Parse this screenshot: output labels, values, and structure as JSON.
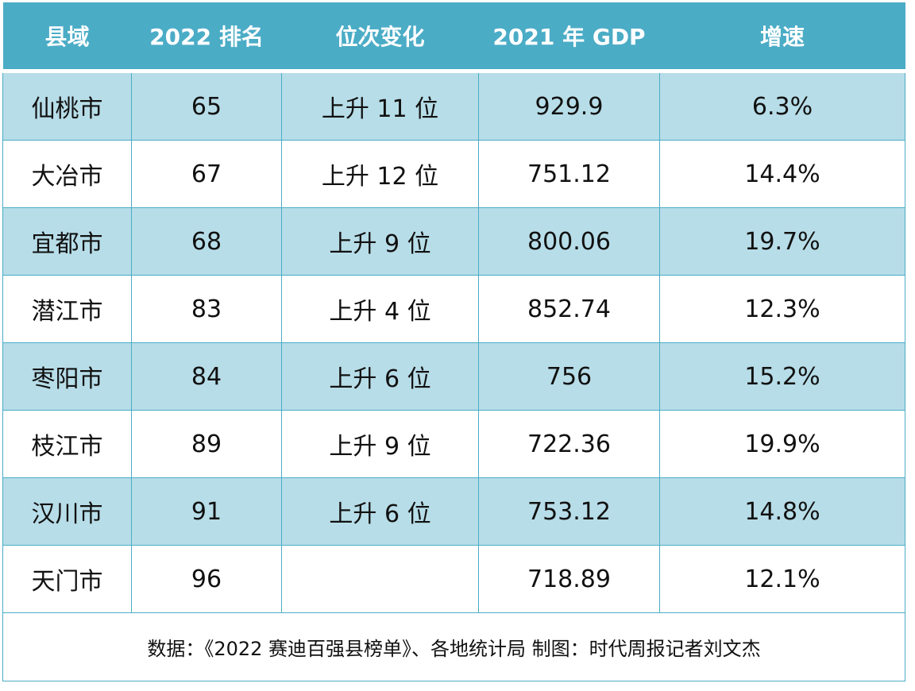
{
  "table": {
    "header": [
      "县域",
      "2022 排名",
      "位次变化",
      "2021 年 GDP",
      "增速"
    ],
    "rows": [
      [
        "仙桃市",
        "65",
        "上升 11 位",
        "929.9",
        "6.3%"
      ],
      [
        "大冶市",
        "67",
        "上升 12 位",
        "751.12",
        "14.4%"
      ],
      [
        "宜都市",
        "68",
        "上升 9 位",
        "800.06",
        "19.7%"
      ],
      [
        "潜江市",
        "83",
        "上升 4 位",
        "852.74",
        "12.3%"
      ],
      [
        "枣阳市",
        "84",
        "上升 6 位",
        "756",
        "15.2%"
      ],
      [
        "枝江市",
        "89",
        "上升 9 位",
        "722.36",
        "19.9%"
      ],
      [
        "汉川市",
        "91",
        "上升 6 位",
        "753.12",
        "14.8%"
      ],
      [
        "天门市",
        "96",
        null,
        "718.89",
        "12.1%"
      ]
    ],
    "footer": "数据：《2022 赛迪百强县榜单》、各地统计局  制图：时代周报记者刘文杰"
  }
}
